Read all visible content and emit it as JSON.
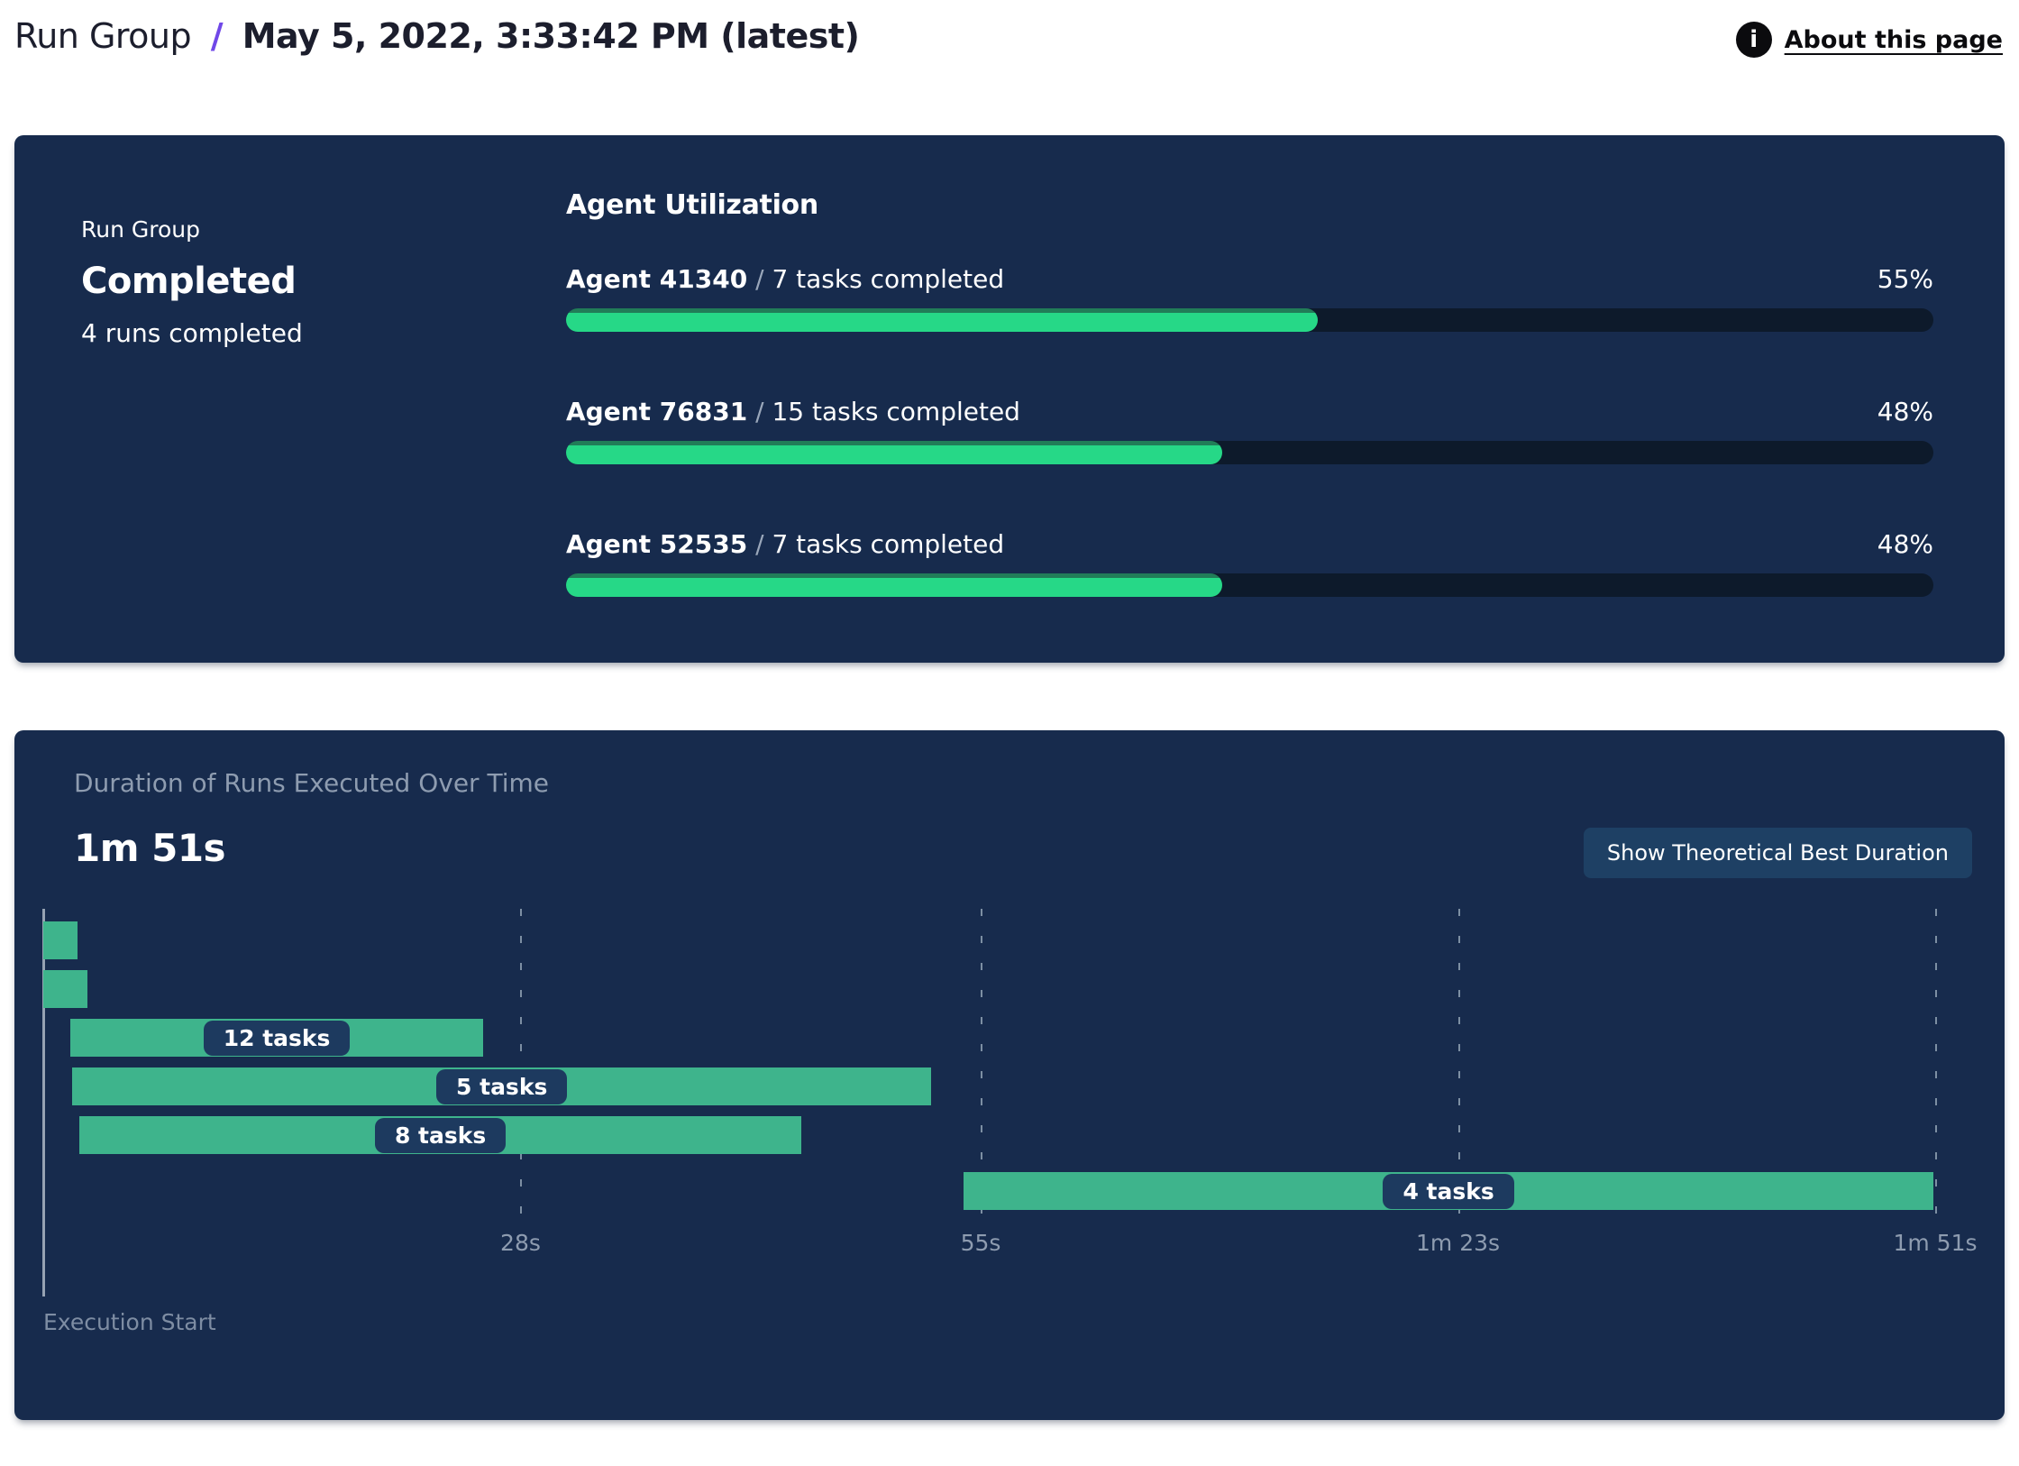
{
  "header": {
    "breadcrumb_root": "Run Group",
    "separator": "/",
    "title": "May 5, 2022, 3:33:42 PM (latest)",
    "info_icon": "i",
    "about_link": "About this page"
  },
  "summary_panel": {
    "label": "Run Group",
    "status": "Completed",
    "subtext": "4 runs completed",
    "agent_utilization": {
      "heading": "Agent Utilization",
      "agents": [
        {
          "name": "Agent 41340",
          "separator": "/",
          "tasks": "7 tasks completed",
          "percent": 55,
          "percent_label": "55%"
        },
        {
          "name": "Agent 76831",
          "separator": "/",
          "tasks": "15 tasks completed",
          "percent": 48,
          "percent_label": "48%"
        },
        {
          "name": "Agent 52535",
          "separator": "/",
          "tasks": "7 tasks completed",
          "percent": 48,
          "percent_label": "48%"
        }
      ]
    }
  },
  "duration_panel": {
    "title": "Duration of Runs Executed Over Time",
    "total_duration": "1m 51s",
    "button_label": "Show Theoretical Best Duration",
    "origin_label": "Execution Start"
  },
  "chart_data": {
    "type": "bar",
    "subtype": "gantt-timeline",
    "title": "Duration of Runs Executed Over Time",
    "total_duration_label": "1m 51s",
    "x_axis": {
      "min_seconds": 0,
      "max_seconds": 111,
      "origin_label": "Execution Start",
      "ticks": [
        {
          "label": "28s",
          "seconds": 28
        },
        {
          "label": "55s",
          "seconds": 55
        },
        {
          "label": "1m 23s",
          "seconds": 83
        },
        {
          "label": "1m 51s",
          "seconds": 111
        }
      ],
      "grid": "dashed-vertical"
    },
    "bars": [
      {
        "label": "",
        "tasks": null,
        "start_s": 0.0,
        "end_s": 2.0
      },
      {
        "label": "",
        "tasks": null,
        "start_s": 0.0,
        "end_s": 2.6
      },
      {
        "label": "12 tasks",
        "tasks": 12,
        "start_s": 1.6,
        "end_s": 25.8
      },
      {
        "label": "5 tasks",
        "tasks": 5,
        "start_s": 1.7,
        "end_s": 52.1
      },
      {
        "label": "8 tasks",
        "tasks": 8,
        "start_s": 2.1,
        "end_s": 44.5
      },
      {
        "label": "4 tasks",
        "tasks": 4,
        "start_s": 54.0,
        "end_s": 110.9
      }
    ],
    "legend": "none"
  },
  "colors": {
    "panel_background": "#172b4d",
    "progress_fill": "#26d887",
    "progress_fill_edge": "#217d58",
    "progress_track": "#0d1a2b",
    "gantt_bar": "#3eb48c",
    "gantt_label_pill": "#1d3a5f",
    "accent_slash": "#7048e8",
    "muted_text": "#8e9cb0",
    "button_background": "#1e4064"
  }
}
